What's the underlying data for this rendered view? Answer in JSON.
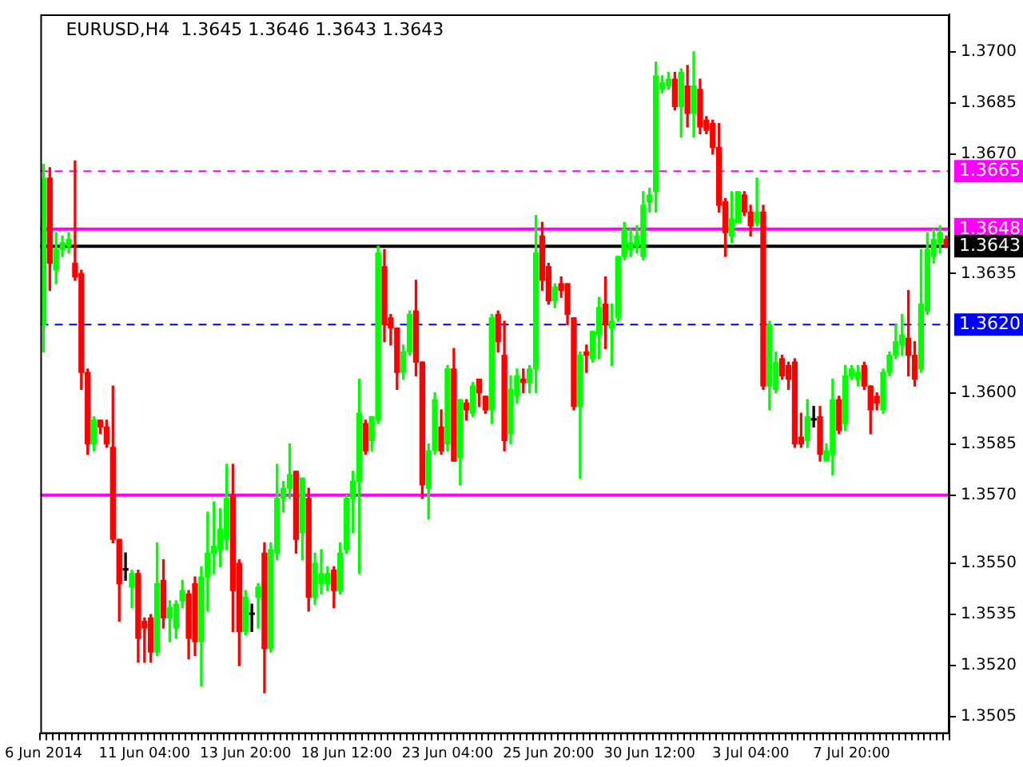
{
  "chart_data": {
    "type": "candlestick",
    "title": "EURUSD,H4  1.3645 1.3646 1.3643 1.3643",
    "categories": [
      "6 Jun 2014",
      null,
      null,
      null,
      null,
      null,
      null,
      null,
      null,
      null,
      null,
      null,
      null,
      null,
      null,
      null,
      "11 Jun 04:00",
      null,
      null,
      null,
      null,
      null,
      null,
      null,
      null,
      null,
      null,
      null,
      null,
      null,
      null,
      null,
      "13 Jun 20:00",
      null,
      null,
      null,
      null,
      null,
      null,
      null,
      null,
      null,
      null,
      null,
      null,
      null,
      null,
      null,
      "18 Jun 12:00",
      null,
      null,
      null,
      null,
      null,
      null,
      null,
      null,
      null,
      null,
      null,
      null,
      null,
      null,
      null,
      "23 Jun 04:00",
      null,
      null,
      null,
      null,
      null,
      null,
      null,
      null,
      null,
      null,
      null,
      null,
      null,
      null,
      null,
      "25 Jun 20:00",
      null,
      null,
      null,
      null,
      null,
      null,
      null,
      null,
      null,
      null,
      null,
      null,
      null,
      null,
      null,
      "30 Jun 12:00",
      null,
      null,
      null,
      null,
      null,
      null,
      null,
      null,
      null,
      null,
      null,
      null,
      null,
      null,
      null,
      "3 Jul 04:00",
      null,
      null,
      null,
      null,
      null,
      null,
      null,
      null,
      null,
      null,
      null,
      null,
      null,
      null,
      null,
      "7 Jul 20:00",
      null,
      null,
      null,
      null,
      null,
      null,
      null,
      null,
      null,
      null,
      null,
      null,
      null,
      null,
      null
    ],
    "ohlc": [
      [
        1.362,
        1.3667,
        1.3612,
        1.3663
      ],
      [
        1.3663,
        1.3666,
        1.363,
        1.3638
      ],
      [
        1.3636,
        1.3647,
        1.3632,
        1.3642
      ],
      [
        1.3642,
        1.3646,
        1.364,
        1.3644
      ],
      [
        1.3643,
        1.3647,
        1.3641,
        1.3645
      ],
      [
        1.3638,
        1.3668,
        1.3633,
        1.3634
      ],
      [
        1.3635,
        1.3636,
        1.3601,
        1.3606
      ],
      [
        1.3606,
        1.3607,
        1.3582,
        1.3585
      ],
      [
        1.3585,
        1.3593,
        1.3583,
        1.3592
      ],
      [
        1.3592,
        1.3592,
        1.3588,
        1.359
      ],
      [
        1.359,
        1.3592,
        1.3584,
        1.3585
      ],
      [
        1.3584,
        1.3602,
        1.3556,
        1.3557
      ],
      [
        1.3557,
        1.3557,
        1.3533,
        1.3544
      ],
      [
        1.3548,
        1.3553,
        1.3545,
        1.3548
      ],
      [
        1.3543,
        1.3548,
        1.3537,
        1.3547
      ],
      [
        1.3547,
        1.3548,
        1.3521,
        1.3528
      ],
      [
        1.3533,
        1.3534,
        1.3521,
        1.3531
      ],
      [
        1.3534,
        1.3535,
        1.3521,
        1.3524
      ],
      [
        1.3524,
        1.3556,
        1.3523,
        1.3544
      ],
      [
        1.3545,
        1.3551,
        1.3531,
        1.3534
      ],
      [
        1.3534,
        1.3539,
        1.3527,
        1.3537
      ],
      [
        1.3531,
        1.3539,
        1.3528,
        1.3538
      ],
      [
        1.3539,
        1.3545,
        1.3537,
        1.3542
      ],
      [
        1.3541,
        1.3542,
        1.3522,
        1.3528
      ],
      [
        1.3544,
        1.3546,
        1.3523,
        1.3527
      ],
      [
        1.3527,
        1.3549,
        1.3514,
        1.3546
      ],
      [
        1.3546,
        1.3565,
        1.3536,
        1.3553
      ],
      [
        1.3553,
        1.3568,
        1.3547,
        1.3555
      ],
      [
        1.3554,
        1.3566,
        1.3549,
        1.356
      ],
      [
        1.3557,
        1.3579,
        1.3554,
        1.3569
      ],
      [
        1.357,
        1.3579,
        1.353,
        1.3542
      ],
      [
        1.355,
        1.3551,
        1.352,
        1.353
      ],
      [
        1.353,
        1.3542,
        1.3529,
        1.354
      ],
      [
        1.3535,
        1.3538,
        1.353,
        1.3535
      ],
      [
        1.354,
        1.3544,
        1.3531,
        1.3543
      ],
      [
        1.3553,
        1.3556,
        1.3512,
        1.3525
      ],
      [
        1.3525,
        1.3556,
        1.3524,
        1.3554
      ],
      [
        1.3553,
        1.3579,
        1.3551,
        1.3569
      ],
      [
        1.3569,
        1.3574,
        1.3565,
        1.3572
      ],
      [
        1.3572,
        1.3585,
        1.3569,
        1.3576
      ],
      [
        1.3577,
        1.3577,
        1.3553,
        1.3557
      ],
      [
        1.3559,
        1.3575,
        1.3551,
        1.3575
      ],
      [
        1.3569,
        1.3572,
        1.3536,
        1.354
      ],
      [
        1.354,
        1.3553,
        1.3538,
        1.355
      ],
      [
        1.3544,
        1.3554,
        1.3541,
        1.3547
      ],
      [
        1.3544,
        1.3549,
        1.3542,
        1.3547
      ],
      [
        1.3548,
        1.3549,
        1.3537,
        1.3542
      ],
      [
        1.3542,
        1.3556,
        1.3541,
        1.3553
      ],
      [
        1.3554,
        1.357,
        1.3553,
        1.3569
      ],
      [
        1.3569,
        1.3577,
        1.3559,
        1.3574
      ],
      [
        1.3574,
        1.3604,
        1.3547,
        1.3594
      ],
      [
        1.3591,
        1.3592,
        1.3582,
        1.3583
      ],
      [
        1.3586,
        1.3593,
        1.3583,
        1.3593
      ],
      [
        1.3592,
        1.3643,
        1.3591,
        1.3641
      ],
      [
        1.3637,
        1.3642,
        1.3615,
        1.362
      ],
      [
        1.3622,
        1.3623,
        1.3614,
        1.3619
      ],
      [
        1.3619,
        1.3619,
        1.3601,
        1.3606
      ],
      [
        1.3606,
        1.3614,
        1.3604,
        1.3612
      ],
      [
        1.3612,
        1.3624,
        1.3611,
        1.3623
      ],
      [
        1.3624,
        1.3633,
        1.3605,
        1.3609
      ],
      [
        1.3609,
        1.3609,
        1.3569,
        1.3573
      ],
      [
        1.3572,
        1.3585,
        1.3563,
        1.3583
      ],
      [
        1.3583,
        1.36,
        1.3582,
        1.3598
      ],
      [
        1.359,
        1.3595,
        1.3582,
        1.3583
      ],
      [
        1.3585,
        1.3608,
        1.3583,
        1.3607
      ],
      [
        1.3607,
        1.3613,
        1.358,
        1.358
      ],
      [
        1.3581,
        1.3598,
        1.3573,
        1.3598
      ],
      [
        1.3597,
        1.3598,
        1.3592,
        1.3595
      ],
      [
        1.3594,
        1.3603,
        1.3593,
        1.3602
      ],
      [
        1.3604,
        1.3604,
        1.3596,
        1.36
      ],
      [
        1.3599,
        1.3599,
        1.3594,
        1.3595
      ],
      [
        1.3595,
        1.3623,
        1.3591,
        1.3622
      ],
      [
        1.3623,
        1.3624,
        1.3612,
        1.3615
      ],
      [
        1.3611,
        1.3621,
        1.3583,
        1.3586
      ],
      [
        1.3588,
        1.3605,
        1.3585,
        1.3601
      ],
      [
        1.3599,
        1.3607,
        1.3597,
        1.3605
      ],
      [
        1.3604,
        1.3607,
        1.36,
        1.3603
      ],
      [
        1.3603,
        1.3608,
        1.36,
        1.3607
      ],
      [
        1.3607,
        1.3652,
        1.36,
        1.3641
      ],
      [
        1.3646,
        1.365,
        1.363,
        1.3633
      ],
      [
        1.3637,
        1.3638,
        1.3626,
        1.3627
      ],
      [
        1.3627,
        1.3632,
        1.3625,
        1.3631
      ],
      [
        1.3632,
        1.3634,
        1.3628,
        1.363
      ],
      [
        1.3632,
        1.3632,
        1.362,
        1.3623
      ],
      [
        1.3622,
        1.3622,
        1.3595,
        1.3596
      ],
      [
        1.3596,
        1.3612,
        1.3575,
        1.3611
      ],
      [
        1.3612,
        1.3614,
        1.3606,
        1.3611
      ],
      [
        1.361,
        1.3618,
        1.3609,
        1.3618
      ],
      [
        1.3617,
        1.3628,
        1.361,
        1.3625
      ],
      [
        1.3626,
        1.3634,
        1.3613,
        1.362
      ],
      [
        1.3619,
        1.3626,
        1.3608,
        1.3621
      ],
      [
        1.3622,
        1.364,
        1.3621,
        1.364
      ],
      [
        1.364,
        1.365,
        1.3639,
        1.3648
      ],
      [
        1.3642,
        1.3648,
        1.364,
        1.3644
      ],
      [
        1.3643,
        1.3649,
        1.3641,
        1.3646
      ],
      [
        1.364,
        1.3659,
        1.3639,
        1.3655
      ],
      [
        1.3656,
        1.366,
        1.3653,
        1.3658
      ],
      [
        1.3659,
        1.3697,
        1.3653,
        1.3693
      ],
      [
        1.3689,
        1.3693,
        1.3688,
        1.3691
      ],
      [
        1.369,
        1.3694,
        1.3689,
        1.3692
      ],
      [
        1.3692,
        1.3694,
        1.3683,
        1.3684
      ],
      [
        1.3684,
        1.3695,
        1.3675,
        1.3694
      ],
      [
        1.369,
        1.3696,
        1.3678,
        1.3682
      ],
      [
        1.3682,
        1.37,
        1.3675,
        1.369
      ],
      [
        1.3689,
        1.3692,
        1.3676,
        1.3678
      ],
      [
        1.368,
        1.3681,
        1.3676,
        1.3677
      ],
      [
        1.3679,
        1.368,
        1.367,
        1.3672
      ],
      [
        1.3672,
        1.3679,
        1.3653,
        1.3655
      ],
      [
        1.3656,
        1.3657,
        1.364,
        1.3647
      ],
      [
        1.3646,
        1.3659,
        1.3644,
        1.3651
      ],
      [
        1.365,
        1.3659,
        1.365,
        1.3659
      ],
      [
        1.3658,
        1.3659,
        1.3652,
        1.3653
      ],
      [
        1.3653,
        1.3655,
        1.3646,
        1.3649
      ],
      [
        1.365,
        1.3663,
        1.3649,
        1.3653
      ],
      [
        1.3653,
        1.3655,
        1.3601,
        1.3602
      ],
      [
        1.3602,
        1.3621,
        1.3595,
        1.362
      ],
      [
        1.3601,
        1.3612,
        1.36,
        1.3609
      ],
      [
        1.361,
        1.3611,
        1.3604,
        1.3605
      ],
      [
        1.3608,
        1.3609,
        1.3601,
        1.3604
      ],
      [
        1.3609,
        1.361,
        1.3584,
        1.3585
      ],
      [
        1.3587,
        1.3594,
        1.3584,
        1.3585
      ],
      [
        1.3586,
        1.3598,
        1.3584,
        1.3593
      ],
      [
        1.3592,
        1.3596,
        1.359,
        1.3592
      ],
      [
        1.3593,
        1.3596,
        1.358,
        1.3582
      ],
      [
        1.358,
        1.3585,
        1.358,
        1.3583
      ],
      [
        1.3582,
        1.3604,
        1.3576,
        1.3598
      ],
      [
        1.3598,
        1.3599,
        1.3588,
        1.3589
      ],
      [
        1.3591,
        1.3608,
        1.3589,
        1.3605
      ],
      [
        1.3605,
        1.3608,
        1.3604,
        1.3607
      ],
      [
        1.3604,
        1.3608,
        1.3602,
        1.3606
      ],
      [
        1.3608,
        1.3609,
        1.3601,
        1.3602
      ],
      [
        1.3602,
        1.3602,
        1.3588,
        1.3595
      ],
      [
        1.3599,
        1.36,
        1.3595,
        1.3597
      ],
      [
        1.3595,
        1.3607,
        1.3594,
        1.3606
      ],
      [
        1.3606,
        1.3612,
        1.3605,
        1.3611
      ],
      [
        1.3611,
        1.362,
        1.361,
        1.3615
      ],
      [
        1.3614,
        1.3623,
        1.3611,
        1.3617
      ],
      [
        1.3616,
        1.363,
        1.3605,
        1.3611
      ],
      [
        1.3611,
        1.3615,
        1.3602,
        1.3604
      ],
      [
        1.3607,
        1.3642,
        1.3606,
        1.3626
      ],
      [
        1.3624,
        1.3647,
        1.3623,
        1.3642
      ],
      [
        1.364,
        1.3648,
        1.3638,
        1.3645
      ],
      [
        1.3644,
        1.3649,
        1.3641,
        1.3647
      ],
      [
        1.3645,
        1.3646,
        1.3643,
        1.3643
      ]
    ],
    "colors": [
      "#00ff00",
      "#ff0000",
      "#00ff00",
      "#00ff00",
      "#00ff00",
      "#ff0000",
      "#ff0000",
      "#ff0000",
      "#00ff00",
      "#ff0000",
      "#ff0000",
      "#ff0000",
      "#ff0000",
      "#000000",
      "#00ff00",
      "#ff0000",
      "#ff0000",
      "#ff0000",
      "#00ff00",
      "#ff0000",
      "#00ff00",
      "#00ff00",
      "#00ff00",
      "#ff0000",
      "#ff0000",
      "#00ff00",
      "#00ff00",
      "#00ff00",
      "#00ff00",
      "#00ff00",
      "#ff0000",
      "#ff0000",
      "#00ff00",
      "#000000",
      "#00ff00",
      "#ff0000",
      "#00ff00",
      "#00ff00",
      "#00ff00",
      "#00ff00",
      "#ff0000",
      "#00ff00",
      "#ff0000",
      "#00ff00",
      "#00ff00",
      "#00ff00",
      "#ff0000",
      "#00ff00",
      "#00ff00",
      "#00ff00",
      "#00ff00",
      "#ff0000",
      "#00ff00",
      "#00ff00",
      "#ff0000",
      "#ff0000",
      "#ff0000",
      "#00ff00",
      "#00ff00",
      "#ff0000",
      "#ff0000",
      "#00ff00",
      "#00ff00",
      "#ff0000",
      "#00ff00",
      "#ff0000",
      "#00ff00",
      "#ff0000",
      "#00ff00",
      "#ff0000",
      "#ff0000",
      "#00ff00",
      "#ff0000",
      "#ff0000",
      "#00ff00",
      "#00ff00",
      "#ff0000",
      "#00ff00",
      "#00ff00",
      "#ff0000",
      "#ff0000",
      "#00ff00",
      "#ff0000",
      "#ff0000",
      "#ff0000",
      "#00ff00",
      "#ff0000",
      "#00ff00",
      "#00ff00",
      "#ff0000",
      "#00ff00",
      "#00ff00",
      "#00ff00",
      "#00ff00",
      "#00ff00",
      "#00ff00",
      "#00ff00",
      "#00ff00",
      "#00ff00",
      "#00ff00",
      "#ff0000",
      "#00ff00",
      "#ff0000",
      "#00ff00",
      "#ff0000",
      "#ff0000",
      "#ff0000",
      "#ff0000",
      "#ff0000",
      "#00ff00",
      "#00ff00",
      "#ff0000",
      "#ff0000",
      "#00ff00",
      "#ff0000",
      "#00ff00",
      "#00ff00",
      "#ff0000",
      "#ff0000",
      "#ff0000",
      "#ff0000",
      "#00ff00",
      "#000000",
      "#ff0000",
      "#00ff00",
      "#00ff00",
      "#ff0000",
      "#00ff00",
      "#00ff00",
      "#00ff00",
      "#ff0000",
      "#ff0000",
      "#ff0000",
      "#00ff00",
      "#00ff00",
      "#00ff00",
      "#00ff00",
      "#ff0000",
      "#ff0000",
      "#00ff00",
      "#00ff00",
      "#00ff00",
      "#00ff00",
      "#ff0000"
    ],
    "ylim": [
      1.35,
      1.3711
    ],
    "yticks": [
      1.3505,
      {
        "value": 1.352,
        "label": "1.3520"
      },
      1.3535,
      {
        "value": 1.355,
        "label": "1.3550"
      },
      {
        "value": 1.357,
        "label": "1.3570"
      },
      1.3585,
      {
        "value": 1.36,
        "label": "1.3600"
      },
      1.3635,
      {
        "value": 1.367,
        "label": "1.3670"
      },
      1.3685,
      {
        "value": 1.37,
        "label": "1.3700"
      }
    ],
    "ref_lines": [
      {
        "axis": "y",
        "value": 1.3665,
        "label": "1.3665",
        "color": "#ff00ff",
        "line_style": "dashed"
      },
      {
        "axis": "y",
        "value": 1.3648,
        "label": "1.3648",
        "color": "#ff00ff",
        "line_style": "solid"
      },
      {
        "axis": "y",
        "value": 1.3643,
        "label": "1.3643",
        "color": "#000000",
        "line_style": "solid"
      },
      {
        "axis": "y",
        "value": 1.362,
        "label": "1.3620",
        "color": "#0000ff",
        "line_style": "dashed"
      },
      {
        "axis": "y",
        "value": 1.357,
        "label": null,
        "color": "#ff00ff",
        "line_style": "solid"
      }
    ],
    "grid": false,
    "legend": false
  }
}
